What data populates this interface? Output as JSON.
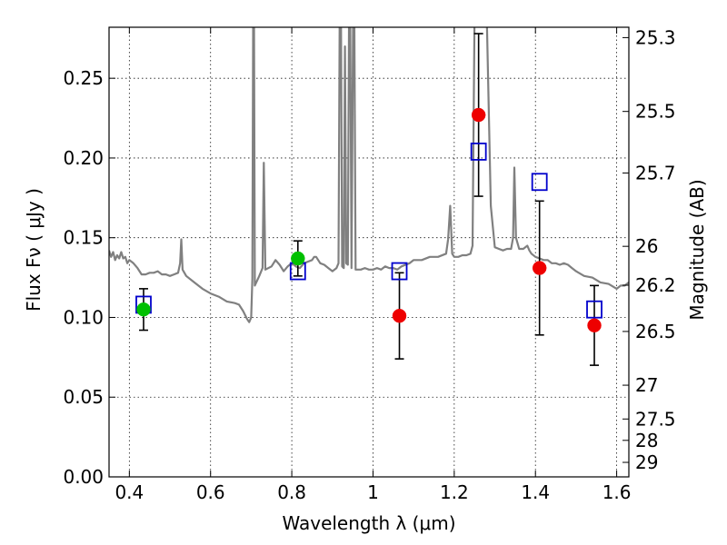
{
  "chart_data": {
    "type": "scatter",
    "title": "",
    "xlabel": "Wavelength  λ (μm)",
    "ylabel": "Flux  Fν  ( μJy )",
    "y2label": "Magnitude (AB)",
    "xlim": [
      0.35,
      1.63
    ],
    "ylim": [
      0.0,
      0.282
    ],
    "grid": true,
    "x_ticks": [
      0.4,
      0.6,
      0.8,
      1.0,
      1.2,
      1.4,
      1.6
    ],
    "x_tick_labels": [
      "0.4",
      "0.6",
      "0.8",
      "1",
      "1.2",
      "1.4",
      "1.6"
    ],
    "y_ticks": [
      0.0,
      0.05,
      0.1,
      0.15,
      0.2,
      0.25
    ],
    "y_tick_labels": [
      "0.00",
      "0.05",
      "0.10",
      "0.15",
      "0.20",
      "0.25"
    ],
    "y2_ticks": [
      {
        "label": "25.3",
        "flux": 0.2755
      },
      {
        "label": "25.5",
        "flux": 0.2292
      },
      {
        "label": "25.7",
        "flux": 0.1906
      },
      {
        "label": "26",
        "flux": 0.1446
      },
      {
        "label": "26.2",
        "flux": 0.1202
      },
      {
        "label": "26.5",
        "flux": 0.0912
      },
      {
        "label": "27",
        "flux": 0.0575
      },
      {
        "label": "27.5",
        "flux": 0.0363
      },
      {
        "label": "28",
        "flux": 0.0229
      },
      {
        "label": "29",
        "flux": 0.0091
      }
    ],
    "series": [
      {
        "name": "model spectrum",
        "kind": "line",
        "color": "#808080",
        "points": [
          [
            0.35,
            0.142
          ],
          [
            0.355,
            0.138
          ],
          [
            0.36,
            0.141
          ],
          [
            0.365,
            0.136
          ],
          [
            0.37,
            0.139
          ],
          [
            0.375,
            0.137
          ],
          [
            0.38,
            0.141
          ],
          [
            0.385,
            0.137
          ],
          [
            0.39,
            0.138
          ],
          [
            0.395,
            0.134
          ],
          [
            0.4,
            0.136
          ],
          [
            0.41,
            0.134
          ],
          [
            0.42,
            0.131
          ],
          [
            0.43,
            0.127
          ],
          [
            0.44,
            0.127
          ],
          [
            0.45,
            0.128
          ],
          [
            0.46,
            0.128
          ],
          [
            0.47,
            0.129
          ],
          [
            0.48,
            0.127
          ],
          [
            0.49,
            0.127
          ],
          [
            0.5,
            0.126
          ],
          [
            0.51,
            0.127
          ],
          [
            0.52,
            0.128
          ],
          [
            0.525,
            0.134
          ],
          [
            0.528,
            0.149
          ],
          [
            0.531,
            0.13
          ],
          [
            0.54,
            0.126
          ],
          [
            0.56,
            0.122
          ],
          [
            0.58,
            0.118
          ],
          [
            0.6,
            0.115
          ],
          [
            0.62,
            0.113
          ],
          [
            0.64,
            0.11
          ],
          [
            0.66,
            0.109
          ],
          [
            0.67,
            0.108
          ],
          [
            0.68,
            0.104
          ],
          [
            0.69,
            0.099
          ],
          [
            0.695,
            0.097
          ],
          [
            0.7,
            0.1
          ],
          [
            0.703,
            0.124
          ],
          [
            0.705,
            0.29
          ],
          [
            0.707,
            0.29
          ],
          [
            0.709,
            0.12
          ],
          [
            0.72,
            0.126
          ],
          [
            0.728,
            0.131
          ],
          [
            0.731,
            0.197
          ],
          [
            0.735,
            0.13
          ],
          [
            0.75,
            0.132
          ],
          [
            0.76,
            0.136
          ],
          [
            0.77,
            0.133
          ],
          [
            0.78,
            0.129
          ],
          [
            0.79,
            0.132
          ],
          [
            0.8,
            0.134
          ],
          [
            0.81,
            0.132
          ],
          [
            0.82,
            0.131
          ],
          [
            0.83,
            0.134
          ],
          [
            0.84,
            0.135
          ],
          [
            0.85,
            0.136
          ],
          [
            0.855,
            0.138
          ],
          [
            0.86,
            0.138
          ],
          [
            0.87,
            0.134
          ],
          [
            0.88,
            0.133
          ],
          [
            0.89,
            0.131
          ],
          [
            0.9,
            0.129
          ],
          [
            0.91,
            0.131
          ],
          [
            0.915,
            0.134
          ],
          [
            0.918,
            0.29
          ],
          [
            0.921,
            0.29
          ],
          [
            0.924,
            0.132
          ],
          [
            0.928,
            0.131
          ],
          [
            0.931,
            0.27
          ],
          [
            0.934,
            0.134
          ],
          [
            0.938,
            0.133
          ],
          [
            0.941,
            0.29
          ],
          [
            0.944,
            0.29
          ],
          [
            0.947,
            0.131
          ],
          [
            0.951,
            0.29
          ],
          [
            0.954,
            0.29
          ],
          [
            0.957,
            0.13
          ],
          [
            0.97,
            0.13
          ],
          [
            0.98,
            0.131
          ],
          [
            0.99,
            0.13
          ],
          [
            1.0,
            0.13
          ],
          [
            1.01,
            0.131
          ],
          [
            1.02,
            0.13
          ],
          [
            1.03,
            0.132
          ],
          [
            1.04,
            0.131
          ],
          [
            1.05,
            0.131
          ],
          [
            1.06,
            0.13
          ],
          [
            1.07,
            0.132
          ],
          [
            1.08,
            0.133
          ],
          [
            1.09,
            0.134
          ],
          [
            1.1,
            0.136
          ],
          [
            1.12,
            0.136
          ],
          [
            1.14,
            0.138
          ],
          [
            1.16,
            0.138
          ],
          [
            1.18,
            0.14
          ],
          [
            1.185,
            0.149
          ],
          [
            1.19,
            0.17
          ],
          [
            1.195,
            0.14
          ],
          [
            1.2,
            0.138
          ],
          [
            1.21,
            0.138
          ],
          [
            1.22,
            0.139
          ],
          [
            1.23,
            0.139
          ],
          [
            1.24,
            0.14
          ],
          [
            1.245,
            0.145
          ],
          [
            1.25,
            0.29
          ],
          [
            1.27,
            0.29
          ],
          [
            1.275,
            0.29
          ],
          [
            1.28,
            0.29
          ],
          [
            1.29,
            0.17
          ],
          [
            1.3,
            0.144
          ],
          [
            1.31,
            0.143
          ],
          [
            1.32,
            0.142
          ],
          [
            1.33,
            0.143
          ],
          [
            1.34,
            0.143
          ],
          [
            1.345,
            0.15
          ],
          [
            1.348,
            0.194
          ],
          [
            1.352,
            0.15
          ],
          [
            1.36,
            0.143
          ],
          [
            1.37,
            0.143
          ],
          [
            1.38,
            0.145
          ],
          [
            1.385,
            0.142
          ],
          [
            1.39,
            0.14
          ],
          [
            1.4,
            0.138
          ],
          [
            1.41,
            0.137
          ],
          [
            1.42,
            0.136
          ],
          [
            1.43,
            0.136
          ],
          [
            1.44,
            0.134
          ],
          [
            1.45,
            0.134
          ],
          [
            1.46,
            0.133
          ],
          [
            1.47,
            0.134
          ],
          [
            1.48,
            0.133
          ],
          [
            1.49,
            0.131
          ],
          [
            1.5,
            0.129
          ],
          [
            1.52,
            0.126
          ],
          [
            1.54,
            0.125
          ],
          [
            1.56,
            0.122
          ],
          [
            1.58,
            0.121
          ],
          [
            1.6,
            0.118
          ],
          [
            1.61,
            0.12
          ],
          [
            1.62,
            0.12
          ],
          [
            1.63,
            0.122
          ]
        ]
      },
      {
        "name": "model photometry",
        "kind": "open-square",
        "color": "#0000cc",
        "x": [
          0.435,
          0.815,
          1.065,
          1.26,
          1.41,
          1.545
        ],
        "y": [
          0.108,
          0.129,
          0.129,
          0.204,
          0.185,
          0.105
        ]
      },
      {
        "name": "observed (green)",
        "kind": "filled-circle",
        "color": "#00c000",
        "x": [
          0.435,
          0.815
        ],
        "y": [
          0.105,
          0.137
        ],
        "yerr": [
          0.013,
          0.011
        ]
      },
      {
        "name": "observed (red)",
        "kind": "filled-circle",
        "color": "#ee0000",
        "x": [
          1.065,
          1.26,
          1.41,
          1.545
        ],
        "y": [
          0.101,
          0.227,
          0.131,
          0.095
        ],
        "yerr": [
          0.027,
          0.051,
          0.042,
          0.025
        ]
      }
    ]
  }
}
